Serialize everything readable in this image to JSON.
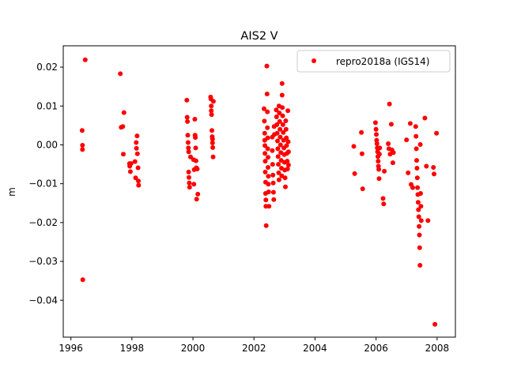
{
  "chart_data": {
    "type": "scatter",
    "title": "AIS2 V",
    "xlabel": "",
    "ylabel": "m",
    "xlim": [
      1995.75,
      2008.6
    ],
    "ylim": [
      -0.0495,
      0.0255
    ],
    "xticks": [
      1996,
      1998,
      2000,
      2002,
      2004,
      2006,
      2008
    ],
    "xtick_labels": [
      "1996",
      "1998",
      "2000",
      "2002",
      "2004",
      "2006",
      "2008"
    ],
    "yticks": [
      0.02,
      0.01,
      0.0,
      -0.01,
      -0.02,
      -0.03,
      -0.04
    ],
    "ytick_labels": [
      "0.02",
      "0.01",
      "0.00",
      "−0.01",
      "−0.02",
      "−0.03",
      "−0.04"
    ],
    "grid": false,
    "legend_position": "top-right",
    "series": [
      {
        "name": "repro2018a (IGS14)",
        "color": "#ff0000",
        "marker": "circle",
        "points": [
          [
            1996.37,
            0.0037
          ],
          [
            1996.38,
            -0.0001
          ],
          [
            1996.38,
            -0.0012
          ],
          [
            1996.39,
            -0.0347
          ],
          [
            1996.47,
            0.0219
          ],
          [
            1997.62,
            0.0183
          ],
          [
            1997.65,
            0.0045
          ],
          [
            1997.7,
            0.0047
          ],
          [
            1997.72,
            -0.0024
          ],
          [
            1997.74,
            0.0083
          ],
          [
            1997.92,
            -0.0048
          ],
          [
            1997.93,
            -0.0055
          ],
          [
            1997.95,
            -0.0069
          ],
          [
            1997.97,
            -0.0048
          ],
          [
            1998.1,
            -0.0043
          ],
          [
            1998.12,
            -0.0085
          ],
          [
            1998.14,
            0.0006
          ],
          [
            1998.15,
            -0.0009
          ],
          [
            1998.17,
            0.0023
          ],
          [
            1998.18,
            -0.0023
          ],
          [
            1998.2,
            -0.0059
          ],
          [
            1998.21,
            -0.0093
          ],
          [
            1998.22,
            -0.0104
          ],
          [
            1999.8,
            0.0115
          ],
          [
            1999.81,
            0.0071
          ],
          [
            1999.82,
            0.006
          ],
          [
            1999.83,
            0.0025
          ],
          [
            1999.84,
            0.0006
          ],
          [
            1999.85,
            -0.0008
          ],
          [
            1999.86,
            -0.0018
          ],
          [
            1999.86,
            -0.007
          ],
          [
            1999.87,
            -0.0084
          ],
          [
            1999.88,
            -0.0098
          ],
          [
            1999.89,
            -0.0109
          ],
          [
            1999.92,
            -0.0031
          ],
          [
            2000.02,
            -0.0038
          ],
          [
            2000.03,
            -0.0101
          ],
          [
            2000.04,
            -0.0064
          ],
          [
            2000.06,
            0.0066
          ],
          [
            2000.07,
            0.0025
          ],
          [
            2000.08,
            0.0019
          ],
          [
            2000.09,
            -0.0008
          ],
          [
            2000.1,
            -0.0041
          ],
          [
            2000.11,
            -0.0059
          ],
          [
            2000.12,
            -0.014
          ],
          [
            2000.14,
            -0.0062
          ],
          [
            2000.16,
            -0.0127
          ],
          [
            2000.58,
            0.0123
          ],
          [
            2000.59,
            0.0118
          ],
          [
            2000.6,
            0.01
          ],
          [
            2000.6,
            0.0088
          ],
          [
            2000.61,
            0.0078
          ],
          [
            2000.62,
            0.0037
          ],
          [
            2000.63,
            0.0021
          ],
          [
            2000.64,
            0.0015
          ],
          [
            2000.64,
            0.0005
          ],
          [
            2000.65,
            -0.0007
          ],
          [
            2000.66,
            -0.0031
          ],
          [
            2000.67,
            0.0112
          ],
          [
            2002.33,
            0.0093
          ],
          [
            2002.34,
            0.0061
          ],
          [
            2002.35,
            0.003
          ],
          [
            2002.35,
            0.0012
          ],
          [
            2002.36,
            -0.0002
          ],
          [
            2002.36,
            -0.0022
          ],
          [
            2002.37,
            -0.0042
          ],
          [
            2002.37,
            -0.007
          ],
          [
            2002.38,
            -0.0096
          ],
          [
            2002.38,
            -0.0125
          ],
          [
            2002.39,
            -0.0142
          ],
          [
            2002.39,
            -0.0158
          ],
          [
            2002.4,
            -0.0208
          ],
          [
            2002.42,
            0.0203
          ],
          [
            2002.43,
            0.0131
          ],
          [
            2002.44,
            0.0085
          ],
          [
            2002.44,
            0.0044
          ],
          [
            2002.45,
            0.0018
          ],
          [
            2002.45,
            -0.001
          ],
          [
            2002.46,
            -0.0032
          ],
          [
            2002.46,
            -0.0058
          ],
          [
            2002.47,
            -0.0081
          ],
          [
            2002.47,
            -0.0101
          ],
          [
            2002.48,
            -0.0121
          ],
          [
            2002.49,
            -0.0158
          ],
          [
            2002.6,
            0.002
          ],
          [
            2002.6,
            -0.0015
          ],
          [
            2002.61,
            -0.005
          ],
          [
            2002.62,
            -0.0078
          ],
          [
            2002.63,
            -0.0098
          ],
          [
            2002.64,
            -0.0122
          ],
          [
            2002.65,
            -0.0141
          ],
          [
            2002.66,
            0.0047
          ],
          [
            2002.67,
            0.0027
          ],
          [
            2002.73,
            0.009
          ],
          [
            2002.74,
            0.0072
          ],
          [
            2002.75,
            0.0052
          ],
          [
            2002.76,
            0.003
          ],
          [
            2002.77,
            0.001
          ],
          [
            2002.78,
            -0.001
          ],
          [
            2002.79,
            -0.003
          ],
          [
            2002.8,
            -0.005
          ],
          [
            2002.81,
            -0.0072
          ],
          [
            2002.82,
            -0.009
          ],
          [
            2002.82,
            0.01
          ],
          [
            2002.83,
            0.0082
          ],
          [
            2002.84,
            0.006
          ],
          [
            2002.85,
            0.004
          ],
          [
            2002.86,
            0.002
          ],
          [
            2002.87,
            0.0
          ],
          [
            2002.88,
            -0.002
          ],
          [
            2002.89,
            -0.004
          ],
          [
            2002.9,
            -0.006
          ],
          [
            2002.91,
            -0.008
          ],
          [
            2002.92,
            0.0158
          ],
          [
            2002.92,
            0.0128
          ],
          [
            2002.93,
            0.0096
          ],
          [
            2002.94,
            0.0075
          ],
          [
            2002.95,
            0.0052
          ],
          [
            2002.96,
            0.0032
          ],
          [
            2002.97,
            0.0012
          ],
          [
            2002.98,
            -0.0008
          ],
          [
            2002.99,
            -0.0025
          ],
          [
            2003.0,
            -0.0045
          ],
          [
            2003.01,
            -0.0065
          ],
          [
            2003.02,
            -0.0085
          ],
          [
            2003.03,
            -0.0108
          ],
          [
            2003.04,
            0.0062
          ],
          [
            2003.05,
            0.004
          ],
          [
            2003.06,
            0.0018
          ],
          [
            2003.07,
            -0.0002
          ],
          [
            2003.08,
            -0.0022
          ],
          [
            2003.09,
            -0.0042
          ],
          [
            2003.1,
            -0.0062
          ],
          [
            2003.11,
            0.0088
          ],
          [
            2003.12,
            0.0008
          ],
          [
            2003.13,
            -0.0018
          ],
          [
            2003.13,
            -0.0052
          ],
          [
            2005.27,
            -0.0004
          ],
          [
            2005.3,
            -0.0074
          ],
          [
            2005.52,
            0.0032
          ],
          [
            2005.54,
            -0.0023
          ],
          [
            2005.56,
            -0.0113
          ],
          [
            2005.98,
            0.0057
          ],
          [
            2006.0,
            0.004
          ],
          [
            2006.01,
            0.0027
          ],
          [
            2006.02,
            0.0012
          ],
          [
            2006.03,
            0.0003
          ],
          [
            2006.04,
            -0.0008
          ],
          [
            2006.05,
            -0.0018
          ],
          [
            2006.06,
            -0.003
          ],
          [
            2006.07,
            -0.0042
          ],
          [
            2006.08,
            -0.0055
          ],
          [
            2006.09,
            -0.0063
          ],
          [
            2006.1,
            -0.0087
          ],
          [
            2006.11,
            -0.0024
          ],
          [
            2006.12,
            -0.0008
          ],
          [
            2006.23,
            -0.0138
          ],
          [
            2006.25,
            -0.0152
          ],
          [
            2006.27,
            -0.0068
          ],
          [
            2006.4,
            0.0003
          ],
          [
            2006.42,
            -0.001
          ],
          [
            2006.44,
            0.0105
          ],
          [
            2006.46,
            -0.0024
          ],
          [
            2006.5,
            0.0053
          ],
          [
            2006.52,
            -0.0013
          ],
          [
            2006.55,
            -0.0046
          ],
          [
            2006.57,
            -0.002
          ],
          [
            2007.0,
            0.0013
          ],
          [
            2007.05,
            -0.0072
          ],
          [
            2007.12,
            0.0055
          ],
          [
            2007.15,
            -0.0102
          ],
          [
            2007.2,
            -0.011
          ],
          [
            2007.3,
            0.0047
          ],
          [
            2007.31,
            0.0022
          ],
          [
            2007.32,
            -0.001
          ],
          [
            2007.33,
            -0.004
          ],
          [
            2007.34,
            -0.006
          ],
          [
            2007.35,
            -0.0085
          ],
          [
            2007.36,
            -0.011
          ],
          [
            2007.37,
            -0.0128
          ],
          [
            2007.38,
            -0.0148
          ],
          [
            2007.39,
            -0.0167
          ],
          [
            2007.4,
            -0.0185
          ],
          [
            2007.41,
            -0.021
          ],
          [
            2007.42,
            -0.0232
          ],
          [
            2007.43,
            -0.0265
          ],
          [
            2007.44,
            -0.031
          ],
          [
            2007.45,
            0.0001
          ],
          [
            2007.46,
            -0.0125
          ],
          [
            2007.47,
            -0.0158
          ],
          [
            2007.48,
            -0.0195
          ],
          [
            2007.6,
            0.0069
          ],
          [
            2007.65,
            -0.0055
          ],
          [
            2007.7,
            -0.0195
          ],
          [
            2007.88,
            -0.0058
          ],
          [
            2007.9,
            -0.0075
          ],
          [
            2007.93,
            -0.0462
          ],
          [
            2007.98,
            0.003
          ]
        ]
      }
    ]
  }
}
